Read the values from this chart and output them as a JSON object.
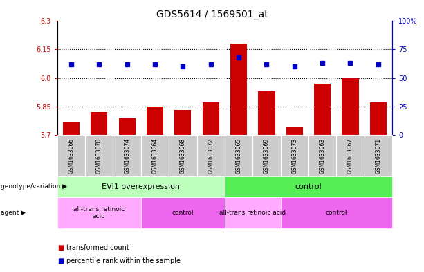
{
  "title": "GDS5614 / 1569501_at",
  "samples": [
    "GSM1633066",
    "GSM1633070",
    "GSM1633074",
    "GSM1633064",
    "GSM1633068",
    "GSM1633072",
    "GSM1633065",
    "GSM1633069",
    "GSM1633073",
    "GSM1633063",
    "GSM1633067",
    "GSM1633071"
  ],
  "bar_values": [
    5.77,
    5.82,
    5.79,
    5.85,
    5.83,
    5.87,
    6.18,
    5.93,
    5.74,
    5.97,
    6.0,
    5.87
  ],
  "dot_values": [
    62,
    62,
    62,
    62,
    60,
    62,
    68,
    62,
    60,
    63,
    63,
    62
  ],
  "ylim_left": [
    5.7,
    6.3
  ],
  "ylim_right": [
    0,
    100
  ],
  "yticks_left": [
    5.7,
    5.85,
    6.0,
    6.15,
    6.3
  ],
  "yticks_right": [
    0,
    25,
    50,
    75,
    100
  ],
  "hlines": [
    5.85,
    6.0,
    6.15
  ],
  "bar_color": "#cc0000",
  "dot_color": "#0000cc",
  "bar_width": 0.6,
  "groups": [
    {
      "label": "EVI1 overexpression",
      "start": 0,
      "end": 6,
      "color": "#bbffbb"
    },
    {
      "label": "control",
      "start": 6,
      "end": 12,
      "color": "#55ee55"
    }
  ],
  "agents": [
    {
      "label": "all-trans retinoic\nacid",
      "start": 0,
      "end": 3,
      "color": "#ffaaff"
    },
    {
      "label": "control",
      "start": 3,
      "end": 6,
      "color": "#ee66ee"
    },
    {
      "label": "all-trans retinoic acid",
      "start": 6,
      "end": 8,
      "color": "#ffaaff"
    },
    {
      "label": "control",
      "start": 8,
      "end": 12,
      "color": "#ee66ee"
    }
  ],
  "genotype_label": "genotype/variation",
  "agent_label": "agent",
  "legend_items": [
    {
      "color": "#cc0000",
      "label": "transformed count"
    },
    {
      "color": "#0000cc",
      "label": "percentile rank within the sample"
    }
  ],
  "right_axis_label_color": "#0000cc",
  "left_axis_label_color": "#cc0000",
  "sample_box_color": "#cccccc",
  "sample_box_edge": "#aaaaaa"
}
